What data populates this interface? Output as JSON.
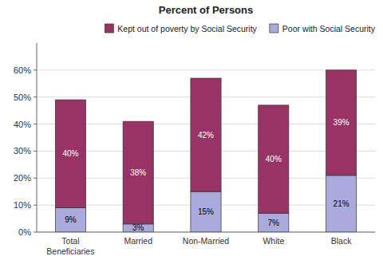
{
  "chart_data": {
    "type": "bar",
    "stacked": true,
    "title": "Percent of Persons",
    "categories": [
      "Total\nBeneficiaries",
      "Married",
      "Non-Married",
      "White",
      "Black"
    ],
    "series": [
      {
        "name": "Poor with Social Security",
        "color": "#AAAADD",
        "values": [
          9,
          3,
          15,
          7,
          21
        ],
        "value_labels": [
          "9%",
          "3%",
          "15%",
          "7%",
          "21%"
        ]
      },
      {
        "name": "Kept out of poverty by Social Security",
        "color": "#993366",
        "values": [
          40,
          38,
          42,
          40,
          39
        ],
        "value_labels": [
          "40%",
          "38%",
          "42%",
          "40%",
          "39%"
        ]
      }
    ],
    "ylim": [
      0,
      70
    ],
    "yticks": [
      {
        "value": 0,
        "label": "0%"
      },
      {
        "value": 10,
        "label": "10%"
      },
      {
        "value": 20,
        "label": "20%"
      },
      {
        "value": 30,
        "label": "30%"
      },
      {
        "value": 40,
        "label": "40%"
      },
      {
        "value": 50,
        "label": "50%"
      },
      {
        "value": 60,
        "label": "60%"
      }
    ],
    "grid": true,
    "legend": "upper right",
    "data_labels": true
  }
}
